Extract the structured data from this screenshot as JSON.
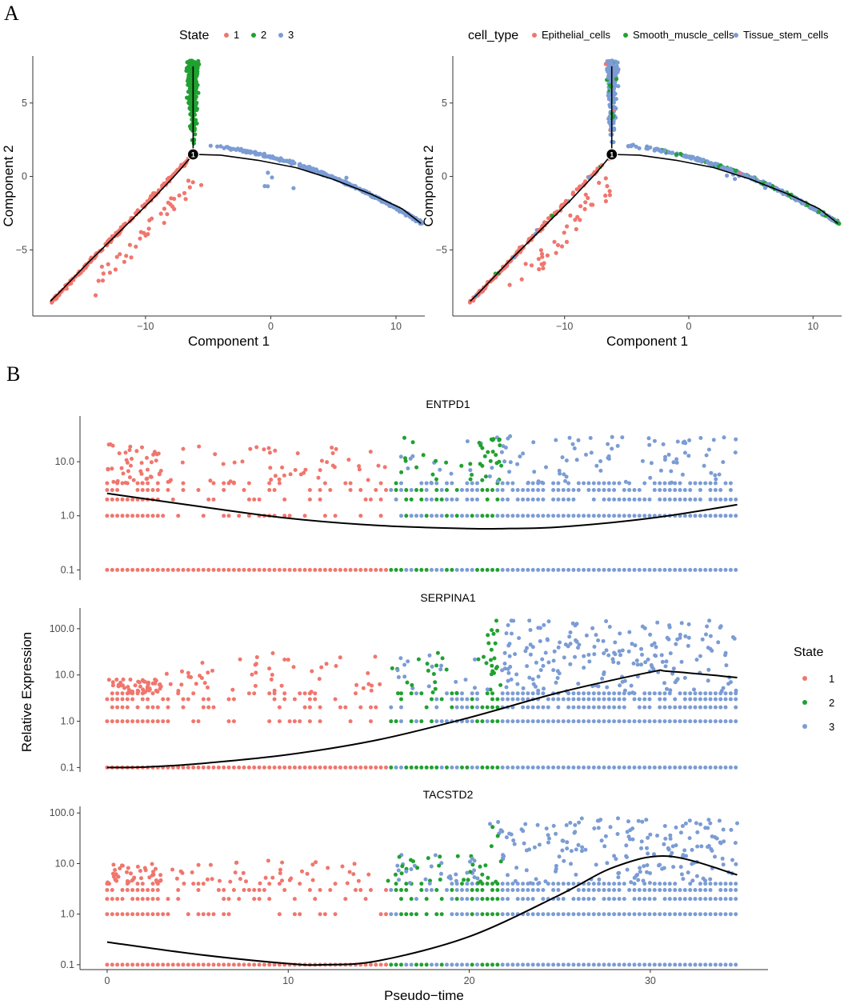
{
  "panels": {
    "a_label": "A",
    "b_label": "B"
  },
  "colors": {
    "state_1": "#F0766D",
    "state_2": "#20A131",
    "state_3": "#7B9CD4",
    "axis": "#333333",
    "line": "#000000"
  },
  "chart_data": [
    {
      "type": "scatter",
      "id": "trajectory-state",
      "xlabel": "Component 1",
      "ylabel": "Component 2",
      "xlim": [
        -19,
        12.3
      ],
      "ylim": [
        -9.5,
        8.2
      ],
      "xticks": [
        -10,
        0,
        10
      ],
      "xtick_labels": [
        "−10",
        "0",
        "10"
      ],
      "yticks": [
        -5,
        0,
        5
      ],
      "ytick_labels": [
        "−5",
        "0",
        "5"
      ],
      "legend": {
        "title": "State",
        "position": "top",
        "entries": [
          "1",
          "2",
          "3"
        ]
      },
      "branch_point": {
        "x": -6.2,
        "y": 1.5,
        "label": "1"
      },
      "trajectory": {
        "branch_1": [
          [
            -6.2,
            1.5
          ],
          [
            -7.5,
            0.2
          ],
          [
            -9.5,
            -1.6
          ],
          [
            -12,
            -3.7
          ],
          [
            -14.5,
            -5.8
          ],
          [
            -17,
            -8.0
          ],
          [
            -17.6,
            -8.5
          ]
        ],
        "branch_2": [
          [
            -6.2,
            1.5
          ],
          [
            -6.2,
            3.5
          ],
          [
            -6.2,
            5.5
          ],
          [
            -6.2,
            7.5
          ]
        ],
        "branch_3": [
          [
            -6.2,
            1.5
          ],
          [
            -4,
            1.45
          ],
          [
            -1,
            1.1
          ],
          [
            2,
            0.6
          ],
          [
            5,
            -0.2
          ],
          [
            8,
            -1.2
          ],
          [
            10.5,
            -2.2
          ],
          [
            12,
            -3.2
          ]
        ]
      },
      "series": [
        {
          "name": "1",
          "region": "lower-left branch",
          "x_range": [
            -17.8,
            -6.2
          ],
          "y_range": [
            -8.8,
            1.8
          ]
        },
        {
          "name": "2",
          "region": "upper branch",
          "x_range": [
            -7,
            -5.5
          ],
          "y_range": [
            2,
            8
          ]
        },
        {
          "name": "3",
          "region": "right branch",
          "x_range": [
            -6,
            12.2
          ],
          "y_range": [
            -3.4,
            2.4
          ]
        }
      ]
    },
    {
      "type": "scatter",
      "id": "trajectory-celltype",
      "xlabel": "Component 1",
      "ylabel": "Component 2",
      "xlim": [
        -19,
        12.3
      ],
      "ylim": [
        -9.5,
        8.2
      ],
      "xticks": [
        -10,
        0,
        10
      ],
      "xtick_labels": [
        "−10",
        "0",
        "10"
      ],
      "yticks": [
        -5,
        0,
        5
      ],
      "ytick_labels": [
        "−5",
        "0",
        "5"
      ],
      "legend": {
        "title": "cell_type",
        "position": "top",
        "entries": [
          "Epithelial_cells",
          "Smooth_muscle_cells",
          "Tissue_stem_cells"
        ]
      },
      "branch_point": {
        "x": -6.2,
        "y": 1.5,
        "label": "1"
      },
      "series": [
        {
          "name": "Epithelial_cells",
          "region": "lower-left branch"
        },
        {
          "name": "Smooth_muscle_cells",
          "region": "upper edge of right branch"
        },
        {
          "name": "Tissue_stem_cells",
          "region": "all branches"
        }
      ]
    },
    {
      "type": "scatter",
      "id": "pseudotime-expression",
      "xlabel": "Pseudo−time",
      "ylabel": "Relative Expression",
      "xlim": [
        -1.5,
        36.5
      ],
      "xticks": [
        0,
        10,
        20,
        30
      ],
      "xtick_labels": [
        "0",
        "10",
        "20",
        "30"
      ],
      "yscale": "log10",
      "legend": {
        "title": "State",
        "position": "right",
        "entries": [
          "1",
          "2",
          "3"
        ]
      },
      "state_ranges": {
        "1": [
          0,
          15.5
        ],
        "2": [
          15.7,
          21.8
        ],
        "3": [
          15.5,
          34.8
        ]
      },
      "facets": [
        {
          "gene": "ENTPD1",
          "ylim": [
            0.065,
            70
          ],
          "yticks": [
            0.1,
            1.0,
            10.0
          ],
          "ytick_labels": [
            "0.1",
            "1.0",
            "10.0"
          ],
          "trend": [
            [
              0,
              2.6
            ],
            [
              5,
              1.5
            ],
            [
              10,
              0.9
            ],
            [
              15,
              0.66
            ],
            [
              20,
              0.58
            ],
            [
              22,
              0.58
            ],
            [
              25,
              0.62
            ],
            [
              30,
              0.9
            ],
            [
              34.8,
              1.6
            ]
          ]
        },
        {
          "gene": "SERPINA1",
          "ylim": [
            0.08,
            280
          ],
          "yticks": [
            0.1,
            1.0,
            10.0,
            100.0
          ],
          "ytick_labels": [
            "0.1",
            "1.0",
            "10.0",
            "100.0"
          ],
          "trend": [
            [
              0,
              0.1
            ],
            [
              2,
              0.102
            ],
            [
              5,
              0.12
            ],
            [
              10,
              0.19
            ],
            [
              15,
              0.4
            ],
            [
              20,
              1.2
            ],
            [
              25,
              4.2
            ],
            [
              30,
              11.5
            ],
            [
              31,
              12
            ],
            [
              34.8,
              8.8
            ]
          ]
        },
        {
          "gene": "TACSTD2",
          "ylim": [
            0.08,
            135
          ],
          "yticks": [
            0.1,
            1.0,
            10.0,
            100.0
          ],
          "ytick_labels": [
            "0.1",
            "1.0",
            "10.0",
            "100.0"
          ],
          "trend": [
            [
              0,
              0.28
            ],
            [
              5,
              0.16
            ],
            [
              10,
              0.105
            ],
            [
              12,
              0.1
            ],
            [
              15,
              0.12
            ],
            [
              20,
              0.36
            ],
            [
              25,
              2.4
            ],
            [
              28,
              8.5
            ],
            [
              31,
              14
            ],
            [
              34.8,
              6.0
            ]
          ]
        }
      ]
    }
  ]
}
